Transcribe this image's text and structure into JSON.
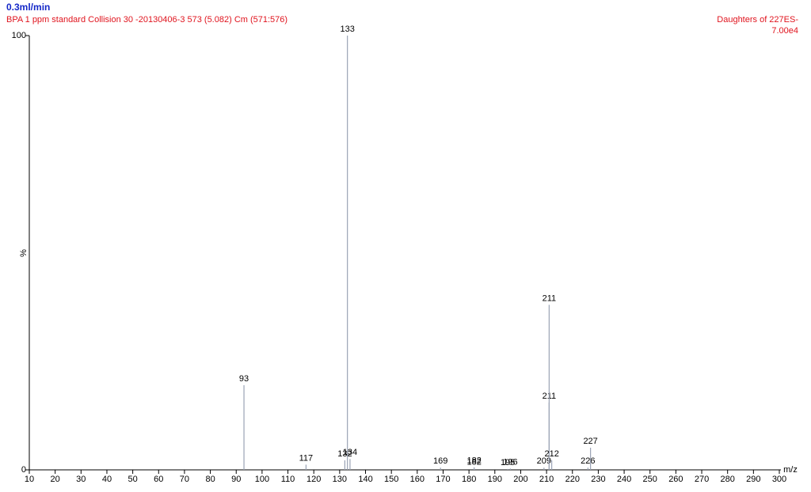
{
  "chart_data": {
    "type": "spectrum",
    "header": "0.3ml/min",
    "title": "BPA 1 ppm standard Collision 30 -20130406-3 573 (5.082) Cm (571:576)",
    "title_right": "Daughters of 227ES-",
    "intensity": "7.00e4",
    "xlabel": "m/z",
    "ylabel": "%",
    "color": "#9aa3b5",
    "x": [
      93,
      117,
      132,
      133,
      134,
      169,
      182,
      182,
      195,
      196,
      209,
      211,
      211,
      212,
      226,
      227
    ],
    "values": [
      19.5,
      1.2,
      2.2,
      100,
      2.5,
      0.5,
      0.3,
      0.6,
      0.2,
      0.3,
      0.5,
      15.5,
      38,
      2.2,
      0.5,
      5.1
    ],
    "xlim": [
      10,
      300
    ],
    "xticks": [
      10,
      20,
      30,
      40,
      50,
      60,
      70,
      80,
      90,
      100,
      110,
      120,
      130,
      140,
      150,
      160,
      170,
      180,
      190,
      200,
      210,
      220,
      230,
      240,
      250,
      260,
      270,
      280,
      290,
      300
    ],
    "ylim": [
      0,
      100
    ],
    "yticks": [
      0,
      100
    ]
  }
}
